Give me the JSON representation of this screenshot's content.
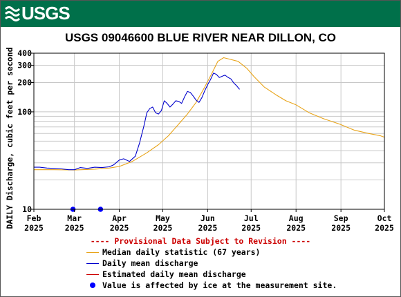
{
  "banner": {
    "logo_text": "USGS",
    "color": "#00704a"
  },
  "chart_data": {
    "type": "line",
    "title": "USGS 09046600 BLUE RIVER NEAR DILLON, CO",
    "ylabel": "DAILY Discharge, cubic feet per second",
    "yscale": "log",
    "ylim": [
      10,
      400
    ],
    "y_ticks": [
      "10",
      "100",
      "200",
      "300",
      "400"
    ],
    "x_range": [
      "2025-02-01",
      "2025-10-01"
    ],
    "x_ticks": [
      {
        "date": "2025-02-01",
        "month": "Feb",
        "year": "2025"
      },
      {
        "date": "2025-03-01",
        "month": "Mar",
        "year": "2025"
      },
      {
        "date": "2025-04-01",
        "month": "Apr",
        "year": "2025"
      },
      {
        "date": "2025-05-01",
        "month": "May",
        "year": "2025"
      },
      {
        "date": "2025-06-01",
        "month": "Jun",
        "year": "2025"
      },
      {
        "date": "2025-07-01",
        "month": "Jul",
        "year": "2025"
      },
      {
        "date": "2025-08-01",
        "month": "Aug",
        "year": "2025"
      },
      {
        "date": "2025-09-01",
        "month": "Sep",
        "year": "2025"
      },
      {
        "date": "2025-10-01",
        "month": "Oct",
        "year": "2025"
      }
    ],
    "grid": true,
    "series": [
      {
        "name": "Median daily statistic (67 years)",
        "color": "#e8a317",
        "points": [
          [
            "2025-02-01",
            25.5
          ],
          [
            "2025-02-15",
            25.5
          ],
          [
            "2025-03-01",
            25.3
          ],
          [
            "2025-03-15",
            25.8
          ],
          [
            "2025-03-25",
            26.5
          ],
          [
            "2025-04-01",
            27.5
          ],
          [
            "2025-04-10",
            31
          ],
          [
            "2025-04-20",
            38
          ],
          [
            "2025-04-28",
            46
          ],
          [
            "2025-05-05",
            57
          ],
          [
            "2025-05-12",
            75
          ],
          [
            "2025-05-18",
            95
          ],
          [
            "2025-05-24",
            125
          ],
          [
            "2025-05-30",
            180
          ],
          [
            "2025-06-04",
            250
          ],
          [
            "2025-06-08",
            330
          ],
          [
            "2025-06-12",
            360
          ],
          [
            "2025-06-17",
            345
          ],
          [
            "2025-06-22",
            330
          ],
          [
            "2025-06-28",
            280
          ],
          [
            "2025-07-03",
            230
          ],
          [
            "2025-07-10",
            180
          ],
          [
            "2025-07-18",
            150
          ],
          [
            "2025-07-25",
            130
          ],
          [
            "2025-08-01",
            118
          ],
          [
            "2025-08-10",
            98
          ],
          [
            "2025-08-20",
            85
          ],
          [
            "2025-08-31",
            75
          ],
          [
            "2025-09-10",
            65
          ],
          [
            "2025-09-20",
            60
          ],
          [
            "2025-09-28",
            57
          ],
          [
            "2025-10-01",
            55
          ]
        ]
      },
      {
        "name": "Daily mean discharge",
        "color": "#0000cc",
        "points": [
          [
            "2025-02-01",
            27
          ],
          [
            "2025-02-05",
            27
          ],
          [
            "2025-02-10",
            26.5
          ],
          [
            "2025-02-15",
            26.3
          ],
          [
            "2025-02-20",
            26
          ],
          [
            "2025-02-25",
            25.5
          ],
          [
            "2025-03-01",
            25.5
          ],
          [
            "2025-03-05",
            26.8
          ],
          [
            "2025-03-10",
            26.3
          ],
          [
            "2025-03-15",
            27
          ],
          [
            "2025-03-20",
            26.8
          ],
          [
            "2025-03-25",
            27.3
          ],
          [
            "2025-03-28",
            28.5
          ],
          [
            "2025-04-01",
            32
          ],
          [
            "2025-04-04",
            33
          ],
          [
            "2025-04-08",
            31
          ],
          [
            "2025-04-12",
            35
          ],
          [
            "2025-04-15",
            48
          ],
          [
            "2025-04-18",
            72
          ],
          [
            "2025-04-20",
            98
          ],
          [
            "2025-04-22",
            108
          ],
          [
            "2025-04-24",
            112
          ],
          [
            "2025-04-26",
            98
          ],
          [
            "2025-04-28",
            95
          ],
          [
            "2025-04-30",
            103
          ],
          [
            "2025-05-02",
            130
          ],
          [
            "2025-05-04",
            122
          ],
          [
            "2025-05-06",
            112
          ],
          [
            "2025-05-08",
            120
          ],
          [
            "2025-05-10",
            130
          ],
          [
            "2025-05-12",
            128
          ],
          [
            "2025-05-14",
            122
          ],
          [
            "2025-05-16",
            142
          ],
          [
            "2025-05-18",
            162
          ],
          [
            "2025-05-20",
            158
          ],
          [
            "2025-05-22",
            145
          ],
          [
            "2025-05-24",
            132
          ],
          [
            "2025-05-26",
            125
          ],
          [
            "2025-05-28",
            140
          ],
          [
            "2025-05-30",
            165
          ],
          [
            "2025-06-01",
            190
          ],
          [
            "2025-06-03",
            215
          ],
          [
            "2025-06-05",
            250
          ],
          [
            "2025-06-07",
            242
          ],
          [
            "2025-06-09",
            225
          ],
          [
            "2025-06-11",
            232
          ],
          [
            "2025-06-13",
            238
          ],
          [
            "2025-06-15",
            226
          ],
          [
            "2025-06-17",
            218
          ],
          [
            "2025-06-19",
            198
          ],
          [
            "2025-06-21",
            185
          ],
          [
            "2025-06-23",
            170
          ]
        ]
      }
    ],
    "ice_points": [
      [
        "2025-02-28",
        10
      ],
      [
        "2025-03-19",
        10
      ]
    ]
  },
  "legend": {
    "provisional": "---- Provisional Data Subject to Revision ----",
    "items": [
      {
        "label": "Median daily statistic (67 years)",
        "color": "#e8a317",
        "kind": "line"
      },
      {
        "label": "Daily mean discharge",
        "color": "#0000cc",
        "kind": "line"
      },
      {
        "label": "Estimated daily mean discharge",
        "color": "#cc0000",
        "kind": "line"
      },
      {
        "label": "Value is affected by ice at the measurement site.",
        "color": "#0000ff",
        "kind": "dot"
      }
    ]
  }
}
